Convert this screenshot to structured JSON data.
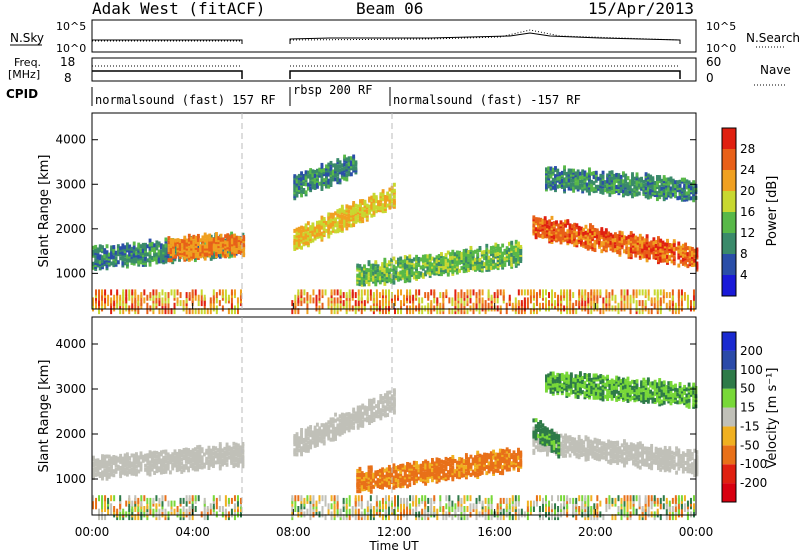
{
  "header": {
    "title": "Adak West (fitACF)",
    "beam": "Beam 06",
    "date": "15/Apr/2013"
  },
  "top_panels": {
    "nsky_label": "N.Sky",
    "nsearch_label": "N.Search",
    "nsky_ticks": [
      "10^5",
      "10^0"
    ],
    "nsky_right_ticks": [
      "10^5",
      "10^0"
    ],
    "freq_label_1": "Freq.",
    "freq_label_2": "[MHz]",
    "freq_ticks": [
      "18",
      "8"
    ],
    "nave_label": "Nave",
    "nave_ticks": [
      "60",
      "0"
    ],
    "cpid_label": "CPID"
  },
  "cpid_segments": [
    {
      "label": "normalsound (fast) 157 RF",
      "start_h": 0.0
    },
    {
      "label": "rbsp 200 RF",
      "start_h": 8.0
    },
    {
      "label": "normalsound (fast) -157 RF",
      "start_h": 12.0
    }
  ],
  "y_axis": {
    "label": "Slant Range [km]",
    "ticks": [
      "1000",
      "2000",
      "3000",
      "4000"
    ],
    "range": [
      200,
      4600
    ]
  },
  "x_axis": {
    "label": "Time UT",
    "ticks": [
      "00:00",
      "04:00",
      "08:00",
      "12:00",
      "16:00",
      "20:00",
      "00:00"
    ],
    "range_h": [
      0,
      24
    ]
  },
  "power_scale": {
    "label": "Power [dB]",
    "ticks": [
      "4",
      "8",
      "12",
      "16",
      "20",
      "24",
      "28"
    ],
    "colors": [
      "#1a1ad8",
      "#2a4ea8",
      "#3a8a6a",
      "#58b848",
      "#c8d830",
      "#f0a020",
      "#e86018",
      "#e02010"
    ]
  },
  "velocity_scale": {
    "label": "Velocity [m s⁻¹]",
    "ticks": [
      "200",
      "100",
      "50",
      "15",
      "-15",
      "-50",
      "-100",
      "-200"
    ],
    "colors": [
      "#1a2ad0",
      "#2a4aa8",
      "#2e7a48",
      "#78d838",
      "#c0c0b8",
      "#f0b020",
      "#e87018",
      "#e02010",
      "#d80010"
    ]
  },
  "chart_data": {
    "type": "heatmap",
    "title": "Adak West (fitACF)",
    "xlabel": "Time UT",
    "ylabel": "Slant Range [km]",
    "x_range_hours": [
      0,
      24
    ],
    "y_range_km": [
      200,
      4600
    ],
    "data_gap_hours": [
      6.0,
      7.9
    ],
    "panels": [
      {
        "name": "Power",
        "units": "dB",
        "scale_ticks": [
          4,
          8,
          12,
          16,
          20,
          24,
          28
        ],
        "features": [
          {
            "t_start": 0.0,
            "t_end": 6.0,
            "range_start_km": 1400,
            "range_end_km": 1700,
            "dominant_db": 8
          },
          {
            "t_start": 3.0,
            "t_end": 6.0,
            "range_start_km": 1600,
            "range_end_km": 1700,
            "dominant_db": 22
          },
          {
            "t_start": 8.0,
            "t_end": 12.0,
            "range_start_km": 1800,
            "range_end_km": 2800,
            "dominant_db": 18
          },
          {
            "t_start": 10.5,
            "t_end": 17.0,
            "range_start_km": 1000,
            "range_end_km": 1500,
            "dominant_db": 12
          },
          {
            "t_start": 17.5,
            "t_end": 24.0,
            "range_start_km": 2100,
            "range_end_km": 1400,
            "dominant_db": 24
          },
          {
            "t_start": 8.0,
            "t_end": 10.5,
            "range_start_km": 3000,
            "range_end_km": 3500,
            "dominant_db": 8
          },
          {
            "t_start": 18.0,
            "t_end": 24.0,
            "range_start_km": 3200,
            "range_end_km": 2900,
            "dominant_db": 8
          }
        ]
      },
      {
        "name": "Velocity",
        "units": "m s^-1",
        "scale_ticks": [
          200,
          100,
          50,
          15,
          -15,
          -50,
          -100,
          -200
        ],
        "features": [
          {
            "t_start": 0.0,
            "t_end": 6.0,
            "range_start_km": 1300,
            "range_end_km": 1600,
            "dominant_ms": 0
          },
          {
            "t_start": 8.0,
            "t_end": 12.0,
            "range_start_km": 1800,
            "range_end_km": 2800,
            "dominant_ms": 0
          },
          {
            "t_start": 10.5,
            "t_end": 17.0,
            "range_start_km": 1000,
            "range_end_km": 1500,
            "dominant_ms": -40
          },
          {
            "t_start": 17.5,
            "t_end": 24.0,
            "range_start_km": 1900,
            "range_end_km": 1400,
            "dominant_ms": 0
          },
          {
            "t_start": 17.5,
            "t_end": 18.5,
            "range_start_km": 2200,
            "range_end_km": 1800,
            "dominant_ms": 40
          },
          {
            "t_start": 18.0,
            "t_end": 24.0,
            "range_start_km": 3200,
            "range_end_km": 2900,
            "dominant_ms": 30
          }
        ]
      }
    ]
  }
}
